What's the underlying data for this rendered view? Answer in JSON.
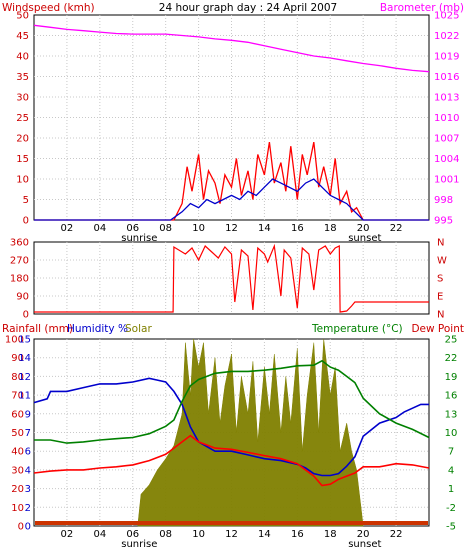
{
  "chart_data": [
    {
      "type": "line",
      "title": "24 hour graph day : 24 April 2007",
      "left_axis_label": "Windspeed (kmh)",
      "right_axis_label": "Barometer (mb)",
      "left_ylim": [
        0,
        50
      ],
      "right_ylim": [
        995,
        1025
      ],
      "left_ticks": [
        "0",
        "5",
        "10",
        "15",
        "20",
        "25",
        "30",
        "35",
        "40",
        "45",
        "50"
      ],
      "right_ticks": [
        "995",
        "998",
        "1001",
        "1004",
        "1007",
        "1010",
        "1013",
        "1016",
        "1019",
        "1022",
        "1025"
      ],
      "x_ticks": [
        "02",
        "04",
        "06",
        "08",
        "10",
        "12",
        "14",
        "16",
        "18",
        "20",
        "22"
      ],
      "x_markers": [
        "sunrise",
        "sunset"
      ],
      "grid": true,
      "series": [
        {
          "axis": "right",
          "color": "#ff00ff",
          "x": [
            0,
            1,
            2,
            3,
            4,
            5,
            6,
            7,
            8,
            9,
            10,
            11,
            12,
            13,
            14,
            15,
            16,
            17,
            18,
            19,
            20,
            21,
            22,
            23,
            24
          ],
          "y": [
            1023.5,
            1023.2,
            1022.9,
            1022.7,
            1022.5,
            1022.3,
            1022.2,
            1022.2,
            1022.2,
            1022.0,
            1021.8,
            1021.5,
            1021.3,
            1021.0,
            1020.5,
            1020.0,
            1019.5,
            1019.0,
            1018.7,
            1018.3,
            1017.9,
            1017.6,
            1017.2,
            1016.9,
            1016.7
          ]
        },
        {
          "axis": "left",
          "color": "#ff0000",
          "x": [
            0,
            8.5,
            9,
            9.3,
            9.6,
            10,
            10.3,
            10.6,
            11,
            11.3,
            11.6,
            12,
            12.3,
            12.6,
            13,
            13.3,
            13.6,
            14,
            14.3,
            14.6,
            15,
            15.3,
            15.6,
            16,
            16.3,
            16.6,
            17,
            17.3,
            17.6,
            18,
            18.3,
            18.6,
            19,
            19.3,
            19.6,
            20,
            24
          ],
          "y": [
            0,
            0,
            4,
            13,
            7,
            16,
            5,
            12,
            9,
            4,
            11,
            8,
            15,
            6,
            12,
            5,
            16,
            11,
            19,
            9,
            14,
            7,
            18,
            5,
            16,
            11,
            19,
            8,
            13,
            6,
            15,
            4,
            7,
            2,
            3,
            0,
            0
          ]
        },
        {
          "axis": "left",
          "color": "#0000cc",
          "x": [
            0,
            8.3,
            9,
            9.5,
            10,
            10.5,
            11,
            11.5,
            12,
            12.5,
            13,
            13.5,
            14,
            14.5,
            15,
            15.5,
            16,
            16.5,
            17,
            17.5,
            18,
            18.5,
            19,
            19.5,
            20,
            24
          ],
          "y": [
            0,
            0,
            2,
            4,
            3,
            5,
            4,
            5,
            6,
            5,
            7,
            6,
            8,
            10,
            9,
            8,
            7,
            9,
            10,
            8,
            6,
            5,
            4,
            2,
            0,
            0
          ]
        }
      ]
    },
    {
      "type": "line",
      "left_ticks": [
        "0",
        "90",
        "180",
        "270",
        "360"
      ],
      "right_ticks": [
        "N",
        "E",
        "S",
        "W",
        "N"
      ],
      "left_ylim": [
        0,
        360
      ],
      "series": [
        {
          "name": "wind direction",
          "color": "#ff0000",
          "x": [
            0,
            8.45,
            8.5,
            9.2,
            9.6,
            10,
            10.4,
            10.8,
            11.2,
            11.6,
            12,
            12.2,
            12.6,
            13,
            13.3,
            13.6,
            14,
            14.2,
            14.6,
            15,
            15.2,
            15.6,
            16,
            16.3,
            16.7,
            17,
            17.3,
            17.7,
            18,
            18.3,
            18.55,
            18.6,
            19,
            19.3,
            19.5,
            20,
            24
          ],
          "y": [
            10,
            10,
            335,
            300,
            330,
            270,
            340,
            310,
            280,
            335,
            300,
            60,
            320,
            290,
            20,
            330,
            300,
            260,
            340,
            90,
            320,
            280,
            30,
            330,
            300,
            120,
            320,
            340,
            300,
            330,
            340,
            10,
            15,
            40,
            60,
            60,
            60
          ]
        }
      ]
    },
    {
      "type": "line",
      "left_axis_label": "Rainfall (mm)",
      "left_axis_label_2": "Humidity %",
      "left_axis_label_3": "Solar",
      "right_axis_label": "Temperature (°C)",
      "right_axis_label_2": "Dew Point",
      "left_ylim": [
        0,
        100
      ],
      "right_ylim": [
        -5,
        25
      ],
      "left_ticks": [
        "0",
        "10",
        "20",
        "30",
        "40",
        "50",
        "60",
        "70",
        "80",
        "90",
        "100"
      ],
      "left_inner_ticks": [
        "0",
        "2",
        "3",
        "4",
        "6",
        "7",
        "9",
        "11",
        "12",
        "14",
        "15"
      ],
      "left_inner_tick_values": [
        0,
        2,
        3,
        4,
        6,
        7,
        9,
        11,
        12,
        14,
        15
      ],
      "right_ticks": [
        "-5",
        "-2",
        "1",
        "4",
        "7",
        "10",
        "13",
        "16",
        "19",
        "22",
        "25"
      ],
      "x_ticks": [
        "02",
        "04",
        "06",
        "08",
        "10",
        "12",
        "14",
        "16",
        "18",
        "20",
        "22"
      ],
      "x_markers": [
        "sunrise",
        "sunset"
      ],
      "series": [
        {
          "name": "Solar",
          "kind": "area",
          "color": "#808000",
          "x": [
            6.3,
            6.5,
            7,
            7.5,
            8,
            8.5,
            9,
            9.2,
            9.5,
            9.7,
            10,
            10.3,
            10.6,
            11,
            11.3,
            11.6,
            12,
            12.3,
            12.6,
            13,
            13.3,
            13.6,
            14,
            14.3,
            14.6,
            15,
            15.3,
            15.6,
            16,
            16.3,
            16.6,
            17,
            17.3,
            17.6,
            18,
            18.3,
            18.6,
            19,
            19.3,
            19.6,
            20
          ],
          "y": [
            0,
            17,
            22,
            30,
            36,
            43,
            60,
            98,
            70,
            100,
            85,
            98,
            60,
            90,
            55,
            75,
            92,
            50,
            80,
            60,
            88,
            45,
            85,
            60,
            92,
            50,
            80,
            55,
            95,
            40,
            70,
            98,
            50,
            100,
            70,
            85,
            40,
            55,
            40,
            30,
            0
          ]
        },
        {
          "name": "Humidity %",
          "color": "#0000cc",
          "x": [
            0,
            0.8,
            1,
            2,
            3,
            4,
            5,
            6,
            7,
            7.5,
            8,
            8.5,
            9,
            9.5,
            10,
            11,
            12,
            13,
            14,
            15,
            16,
            16.5,
            17,
            17.5,
            18,
            18.5,
            19,
            19.5,
            20,
            21,
            22,
            22.5,
            23,
            23.5,
            24
          ],
          "y": [
            66,
            68,
            72,
            72,
            74,
            76,
            76,
            77,
            79,
            78,
            77,
            72,
            65,
            53,
            45,
            40,
            40,
            38,
            36,
            35,
            33,
            31,
            28,
            27,
            27,
            28,
            32,
            37,
            48,
            55,
            58,
            61,
            63,
            65,
            65
          ]
        },
        {
          "name": "Temperature (°C)",
          "color": "#008000",
          "x": [
            0,
            1,
            2,
            3,
            4,
            5,
            6,
            7,
            8,
            8.5,
            9,
            9.5,
            10,
            10.5,
            11,
            12,
            13,
            14,
            15,
            16,
            17,
            17.5,
            18,
            18.5,
            19,
            19.5,
            20,
            21,
            22,
            23,
            24
          ],
          "y": [
            8.8,
            8.8,
            8.3,
            8.5,
            8.8,
            9,
            9.2,
            9.8,
            11,
            12,
            15,
            17.5,
            18.5,
            19,
            19.5,
            19.8,
            19.8,
            20,
            20.3,
            20.7,
            20.8,
            21.5,
            20.5,
            20,
            19,
            18,
            15.5,
            13,
            11.5,
            10.5,
            9.2
          ]
        },
        {
          "name": "Dew Point",
          "color": "#ff0000",
          "x": [
            0,
            1,
            2,
            3,
            4,
            5,
            6,
            7,
            8,
            8.5,
            9,
            9.5,
            10,
            11,
            12,
            13,
            14,
            15,
            16,
            17,
            17.5,
            18,
            18.5,
            19,
            19.5,
            20,
            21,
            22,
            23,
            24
          ],
          "y": [
            3.5,
            3.8,
            4,
            4,
            4.3,
            4.5,
            4.8,
            5.5,
            6.5,
            7.5,
            8.5,
            9.5,
            8.5,
            7.5,
            7.3,
            6.8,
            6.3,
            5.8,
            5,
            3,
            1.5,
            1.7,
            2.5,
            3,
            3.5,
            4.5,
            4.5,
            5,
            4.8,
            4.3
          ]
        },
        {
          "name": "Rainfall (mm)",
          "color": "#cc3300",
          "x": [
            0,
            24
          ],
          "y": [
            0,
            0
          ]
        }
      ]
    }
  ]
}
